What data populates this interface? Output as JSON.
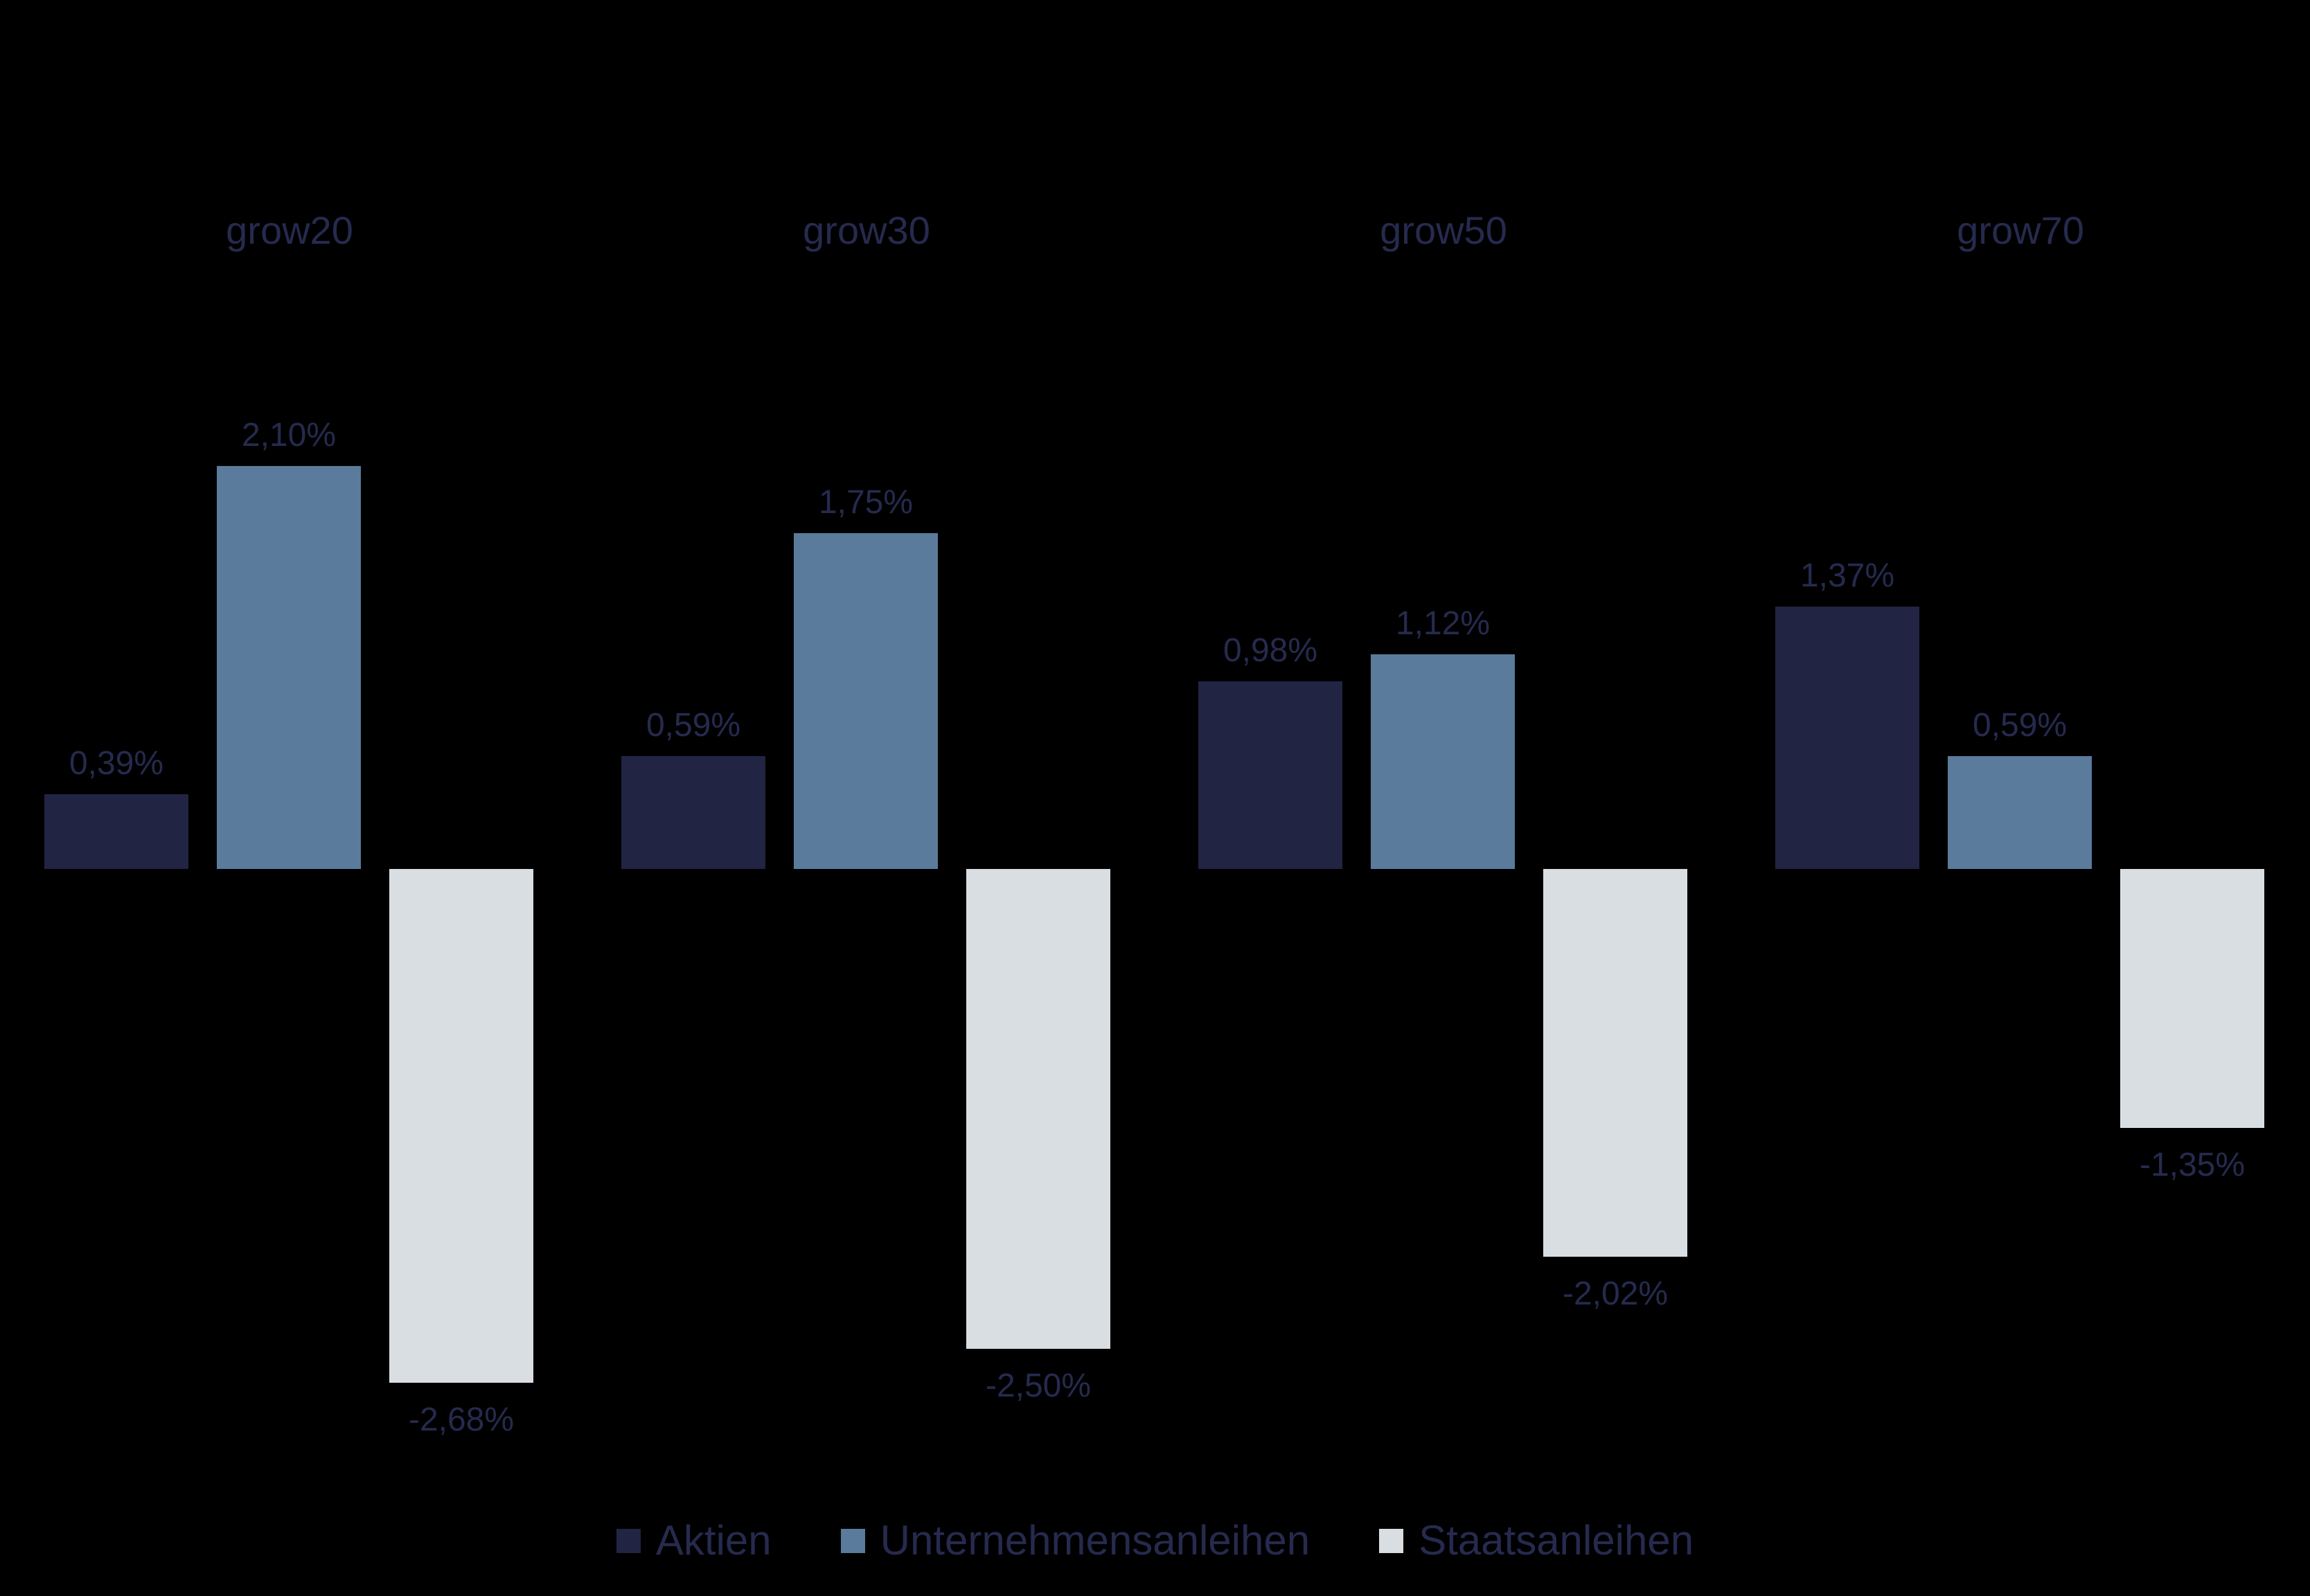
{
  "chart_data": {
    "type": "bar",
    "title": "",
    "xlabel": "",
    "ylabel": "",
    "categories": [
      "grow20",
      "grow30",
      "grow50",
      "grow70"
    ],
    "series": [
      {
        "name": "Aktien",
        "color": "#212442",
        "values": [
          0.39,
          0.59,
          0.98,
          1.37
        ],
        "labels": [
          "0,39%",
          "0,59%",
          "0,98%",
          "1,37%"
        ]
      },
      {
        "name": "Unternehmensanleihen",
        "color": "#5a7b9c",
        "values": [
          2.1,
          1.75,
          1.12,
          0.59
        ],
        "labels": [
          "2,10%",
          "1,75%",
          "1,12%",
          "0,59%"
        ]
      },
      {
        "name": "Staatsanleihen",
        "color": "#d9dee3",
        "values": [
          -2.68,
          -2.5,
          -2.02,
          -1.35
        ],
        "labels": [
          "-2,68%",
          "-2,50%",
          "-2,02%",
          "-1,35%"
        ]
      }
    ],
    "value_suffix": "%",
    "decimal_separator": ",",
    "ylim": [
      -2.68,
      2.1
    ],
    "axes_visible": false,
    "grid": false,
    "background_color": "#000000",
    "text_color": "#262a4e",
    "legend_position": "bottom"
  }
}
